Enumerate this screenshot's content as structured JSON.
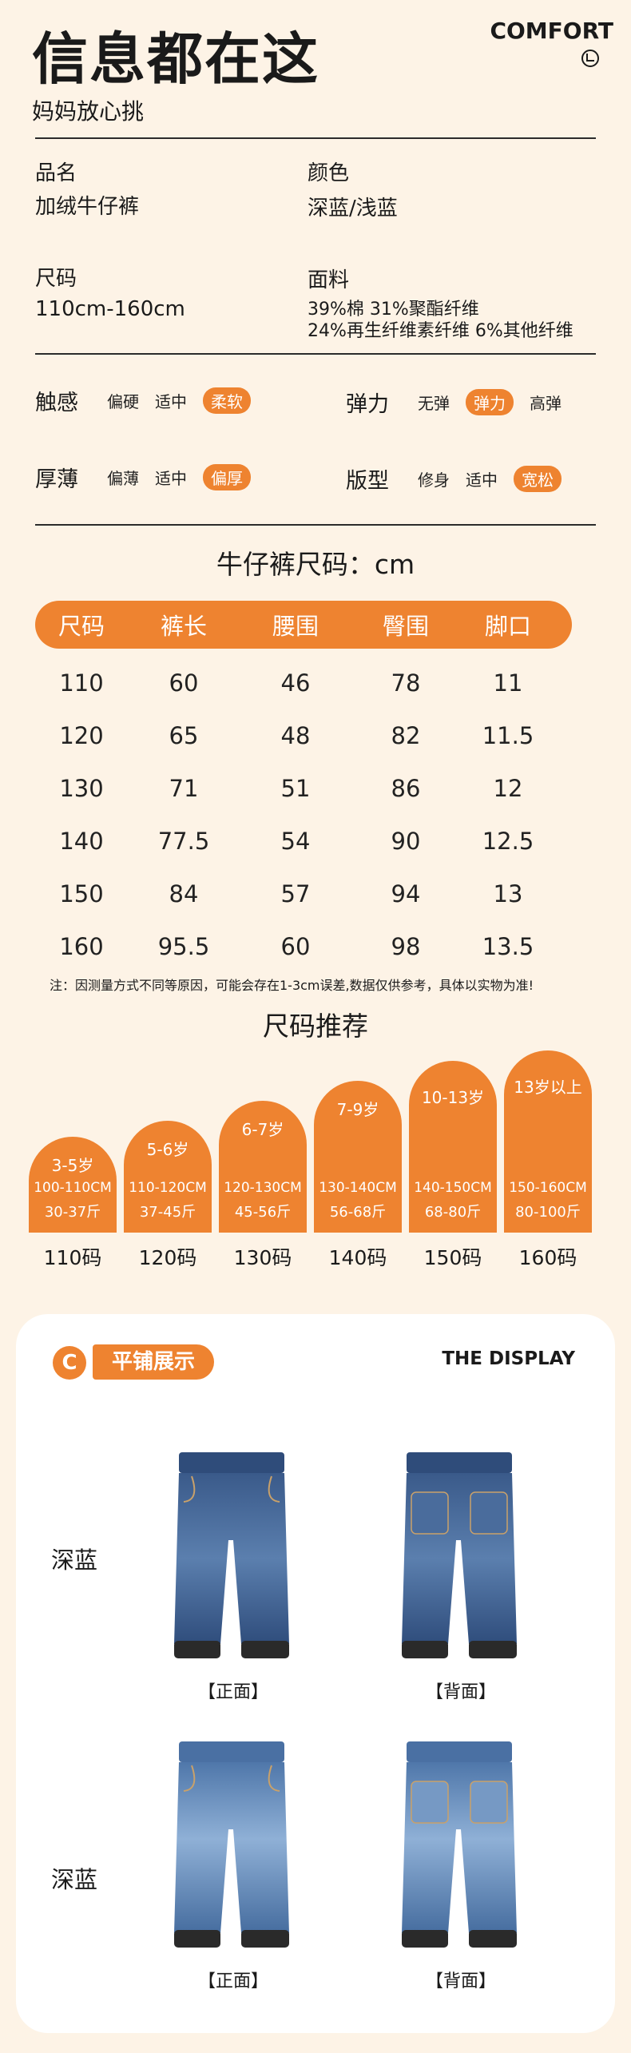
{
  "header": {
    "title": "信息都在这",
    "subtitle": "妈妈放心挑",
    "comfort": "COMFORT"
  },
  "info": [
    {
      "label": "品名",
      "value": "加绒牛仔裤"
    },
    {
      "label": "颜色",
      "value": "深蓝/浅蓝"
    },
    {
      "label": "尺码",
      "value": "110cm-160cm"
    },
    {
      "label": "面料",
      "value_lines": [
        "39%棉 31%聚酯纤维",
        "24%再生纤维素纤维 6%其他纤维"
      ]
    }
  ],
  "attributes": [
    {
      "name": "触感",
      "options": [
        "偏硬",
        "适中",
        "柔软"
      ],
      "selected": 2
    },
    {
      "name": "弹力",
      "options": [
        "无弹",
        "弹力",
        "高弹"
      ],
      "selected": 1
    },
    {
      "name": "厚薄",
      "options": [
        "偏薄",
        "适中",
        "偏厚"
      ],
      "selected": 2
    },
    {
      "name": "版型",
      "options": [
        "修身",
        "适中",
        "宽松"
      ],
      "selected": 2
    }
  ],
  "size_table": {
    "title": "牛仔裤尺码：cm",
    "headers": [
      "尺码",
      "裤长",
      "腰围",
      "臀围",
      "脚口"
    ],
    "rows": [
      [
        "110",
        "60",
        "46",
        "78",
        "11"
      ],
      [
        "120",
        "65",
        "48",
        "82",
        "11.5"
      ],
      [
        "130",
        "71",
        "51",
        "86",
        "12"
      ],
      [
        "140",
        "77.5",
        "54",
        "90",
        "12.5"
      ],
      [
        "150",
        "84",
        "57",
        "94",
        "13"
      ],
      [
        "160",
        "95.5",
        "60",
        "98",
        "13.5"
      ]
    ],
    "note": "注：因测量方式不同等原因，可能会存在1-3cm误差,数据仅供参考，具体以实物为准!"
  },
  "recommend": {
    "title": "尺码推荐",
    "items": [
      {
        "age": "3-5岁",
        "height": "100-110CM",
        "weight": "30-37斤",
        "size": "110码"
      },
      {
        "age": "5-6岁",
        "height": "110-120CM",
        "weight": "37-45斤",
        "size": "120码"
      },
      {
        "age": "6-7岁",
        "height": "120-130CM",
        "weight": "45-56斤",
        "size": "130码"
      },
      {
        "age": "7-9岁",
        "height": "130-140CM",
        "weight": "56-68斤",
        "size": "140码"
      },
      {
        "age": "10-13岁",
        "height": "140-150CM",
        "weight": "68-80斤",
        "size": "150码"
      },
      {
        "age": "13岁以上",
        "height": "150-160CM",
        "weight": "80-100斤",
        "size": "160码"
      }
    ]
  },
  "display": {
    "badge_letter": "C",
    "badge_text": "平铺展示",
    "title_en": "THE DISPLAY",
    "rows": [
      {
        "color": "深蓝",
        "front": "【正面】",
        "back": "【背面】"
      },
      {
        "color": "深蓝",
        "front": "【正面】",
        "back": "【背面】"
      }
    ]
  },
  "colors": {
    "accent": "#ee8330",
    "background": "#fdf3e6",
    "denim_dark": "#3c5e8e",
    "denim_light": "#5f86b8"
  }
}
